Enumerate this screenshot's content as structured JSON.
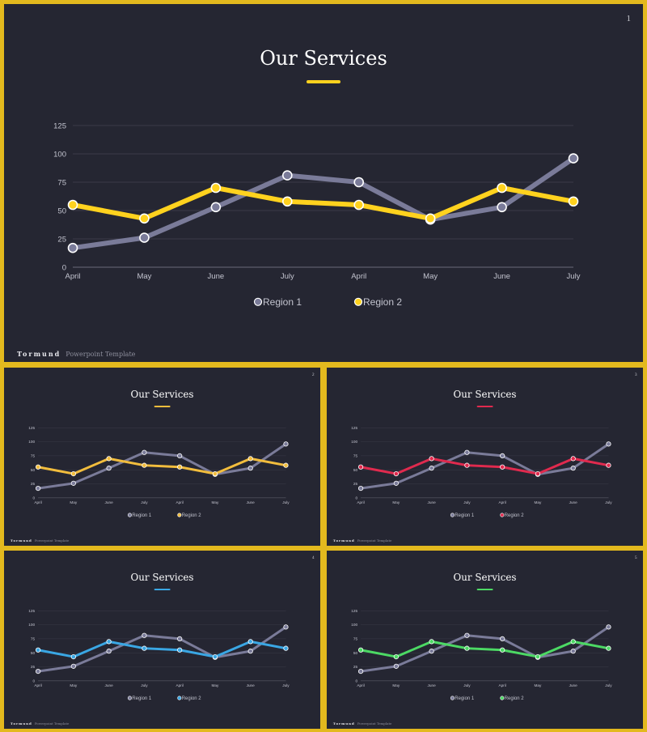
{
  "footer": {
    "brand": "Tormund",
    "subtitle": "Powerpoint Template"
  },
  "slides": [
    {
      "number": "1",
      "title": "Our Services",
      "accent": "#ffd21e"
    },
    {
      "number": "2",
      "title": "Our Services",
      "accent": "#f2bd3d"
    },
    {
      "number": "3",
      "title": "Our Services",
      "accent": "#e02a4e"
    },
    {
      "number": "4",
      "title": "Our Services",
      "accent": "#3aa7e4"
    },
    {
      "number": "5",
      "title": "Our Services",
      "accent": "#4cd964"
    }
  ],
  "colors": {
    "background": "#252632",
    "frame": "#e3b91e",
    "region1": "#7a7b99",
    "grid": "#3a3b48"
  },
  "chart_data": [
    {
      "type": "line",
      "title": "",
      "xlabel": "",
      "ylabel": "",
      "categories": [
        "April",
        "May",
        "June",
        "July",
        "April",
        "May",
        "June",
        "July"
      ],
      "ylim": [
        0,
        125
      ],
      "yticks": [
        0,
        25,
        50,
        75,
        100,
        125
      ],
      "grid": true,
      "legend": "bottom-center",
      "series": [
        {
          "name": "Region 1",
          "color": "#7a7b99",
          "values": [
            17,
            26,
            53,
            81,
            75,
            42,
            53,
            96
          ]
        },
        {
          "name": "Region 2",
          "color": "#ffd21e",
          "values": [
            55,
            43,
            70,
            58,
            55,
            43,
            70,
            58
          ]
        }
      ]
    },
    {
      "type": "line",
      "title": "",
      "xlabel": "",
      "ylabel": "",
      "categories": [
        "April",
        "May",
        "June",
        "July",
        "April",
        "May",
        "June",
        "July"
      ],
      "ylim": [
        0,
        125
      ],
      "yticks": [
        0,
        25,
        50,
        75,
        100,
        125
      ],
      "grid": true,
      "legend": "bottom-center",
      "series": [
        {
          "name": "Region 1",
          "color": "#7a7b99",
          "values": [
            17,
            26,
            53,
            81,
            75,
            42,
            53,
            96
          ]
        },
        {
          "name": "Region 2",
          "color": "#f2bd3d",
          "values": [
            55,
            43,
            70,
            58,
            55,
            43,
            70,
            58
          ]
        }
      ]
    },
    {
      "type": "line",
      "title": "",
      "xlabel": "",
      "ylabel": "",
      "categories": [
        "April",
        "May",
        "June",
        "July",
        "April",
        "May",
        "June",
        "July"
      ],
      "ylim": [
        0,
        125
      ],
      "yticks": [
        0,
        25,
        50,
        75,
        100,
        125
      ],
      "grid": true,
      "legend": "bottom-center",
      "series": [
        {
          "name": "Region 1",
          "color": "#7a7b99",
          "values": [
            17,
            26,
            53,
            81,
            75,
            42,
            53,
            96
          ]
        },
        {
          "name": "Region 2",
          "color": "#e02a4e",
          "values": [
            55,
            43,
            70,
            58,
            55,
            43,
            70,
            58
          ]
        }
      ]
    },
    {
      "type": "line",
      "title": "",
      "xlabel": "",
      "ylabel": "",
      "categories": [
        "April",
        "May",
        "June",
        "July",
        "April",
        "May",
        "June",
        "July"
      ],
      "ylim": [
        0,
        125
      ],
      "yticks": [
        0,
        25,
        50,
        75,
        100,
        125
      ],
      "grid": true,
      "legend": "bottom-center",
      "series": [
        {
          "name": "Region 1",
          "color": "#7a7b99",
          "values": [
            17,
            26,
            53,
            81,
            75,
            42,
            53,
            96
          ]
        },
        {
          "name": "Region 2",
          "color": "#3aa7e4",
          "values": [
            55,
            43,
            70,
            58,
            55,
            43,
            70,
            58
          ]
        }
      ]
    },
    {
      "type": "line",
      "title": "",
      "xlabel": "",
      "ylabel": "",
      "categories": [
        "April",
        "May",
        "June",
        "July",
        "April",
        "May",
        "June",
        "July"
      ],
      "ylim": [
        0,
        125
      ],
      "yticks": [
        0,
        25,
        50,
        75,
        100,
        125
      ],
      "grid": true,
      "legend": "bottom-center",
      "series": [
        {
          "name": "Region 1",
          "color": "#7a7b99",
          "values": [
            17,
            26,
            53,
            81,
            75,
            42,
            53,
            96
          ]
        },
        {
          "name": "Region 2",
          "color": "#4cd964",
          "values": [
            55,
            43,
            70,
            58,
            55,
            43,
            70,
            58
          ]
        }
      ]
    }
  ]
}
